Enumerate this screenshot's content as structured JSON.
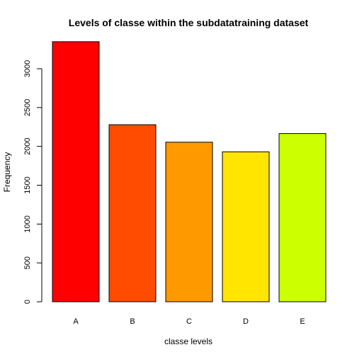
{
  "chart_data": {
    "type": "bar",
    "title": "Levels of classe within the subdatatraining dataset",
    "xlabel": "classe levels",
    "ylabel": "Frequency",
    "categories": [
      "A",
      "B",
      "C",
      "D",
      "E"
    ],
    "values": [
      3348,
      2279,
      2054,
      1930,
      2165
    ],
    "colors": [
      "#FF0000",
      "#FF4C00",
      "#FF9900",
      "#FFE500",
      "#CCFF00"
    ],
    "ylim": [
      0,
      3400
    ],
    "yticks": [
      0,
      500,
      1000,
      1500,
      2000,
      2500,
      3000
    ],
    "ytick_labels": [
      "0",
      "500",
      "1000",
      "1500",
      "2000",
      "2500",
      "3000"
    ],
    "grid": false,
    "legend": "none"
  }
}
